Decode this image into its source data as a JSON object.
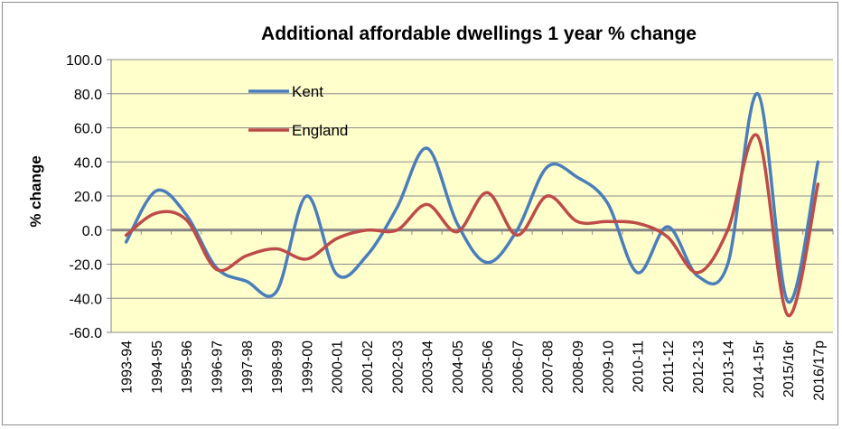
{
  "chart_data": {
    "type": "line",
    "title": "Additional affordable dwellings 1 year % change",
    "ylabel": "% change",
    "xlabel": "",
    "ylim": [
      -60,
      100
    ],
    "yticks": [
      "100.0",
      "80.0",
      "60.0",
      "40.0",
      "20.0",
      "0.0",
      "-20.0",
      "-40.0",
      "-60.0"
    ],
    "grid": true,
    "legend_position": "top-left",
    "plot_background": "#ffffcc",
    "categories": [
      "1993-94",
      "1994-95",
      "1995-96",
      "1996-97",
      "1997-98",
      "1998-99",
      "1999-00",
      "2000-01",
      "2001-02",
      "2002-03",
      "2003-04",
      "2004-05",
      "2005-06",
      "2006-07",
      "2007-08",
      "2008-09",
      "2009-10",
      "2010-11",
      "2011-12",
      "2012-13",
      "2013-14",
      "2014-15r",
      "2015/16r",
      "2016/17p"
    ],
    "series": [
      {
        "name": "Kent",
        "color": "#4a7ebb",
        "values": [
          -7,
          23,
          9,
          -22,
          -30,
          -36,
          20,
          -26,
          -15,
          13,
          48,
          4,
          -19,
          0,
          37,
          31,
          16,
          -25,
          2,
          -27,
          -20,
          80,
          -42,
          40
        ]
      },
      {
        "name": "England",
        "color": "#be4b48",
        "values": [
          -3,
          10,
          6,
          -23,
          -15,
          -11,
          -17,
          -5,
          0,
          0,
          15,
          -1,
          22,
          -3,
          20,
          5,
          5,
          4,
          -4,
          -25,
          0,
          55,
          -50,
          27
        ]
      }
    ]
  }
}
